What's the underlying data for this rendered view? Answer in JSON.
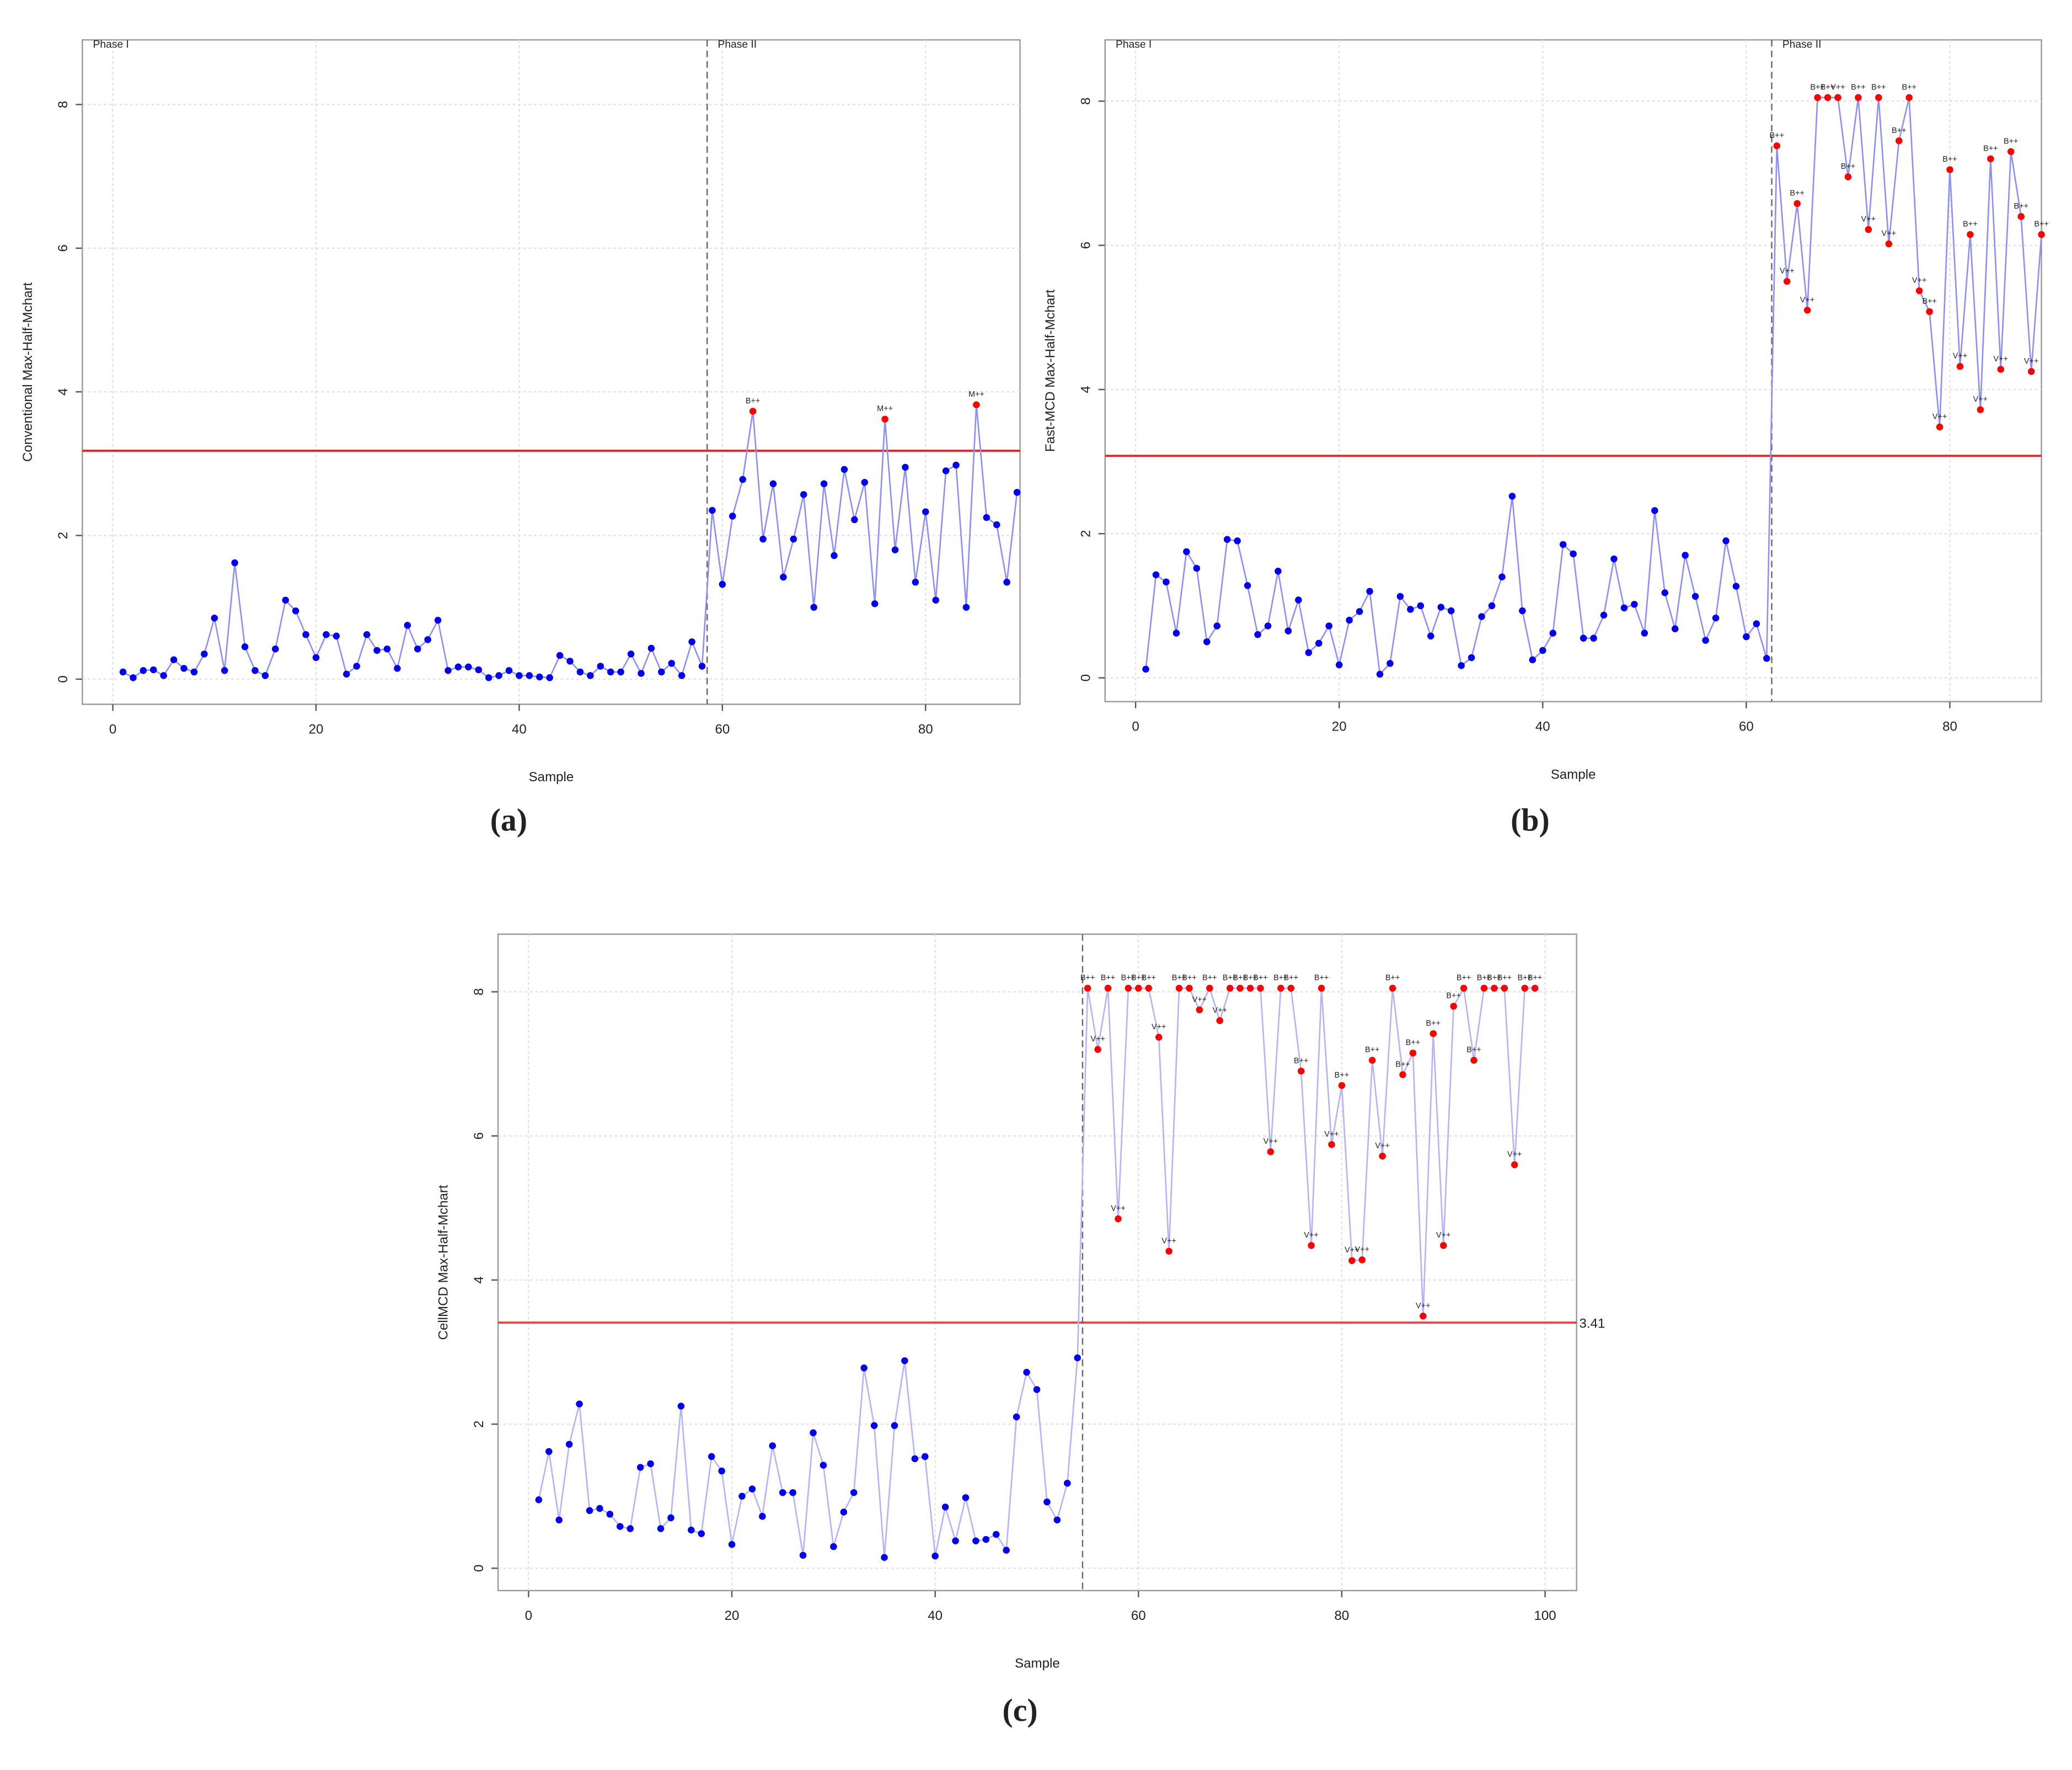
{
  "chart_data": [
    {
      "type": "line",
      "caption": "(a)",
      "ylabel": "Conventional Max-Half-Mchart",
      "xlabel": "Sample",
      "phase_labels": [
        "Phase I",
        "Phase II"
      ],
      "phase_line": 58.5,
      "ucl": 3.18,
      "xlim": [
        -3,
        89.3
      ],
      "ylim": [
        -0.35,
        8.9
      ],
      "xticks": [
        0,
        20,
        40,
        60,
        80
      ],
      "yticks": [
        0,
        2,
        4,
        6,
        8
      ],
      "grid": true,
      "line_color": "#8f8ff5",
      "color": "#0000ee",
      "signal_color": "#ff0000",
      "ucl_color": "#ee2222",
      "x": [
        1,
        2,
        3,
        4,
        5,
        6,
        7,
        8,
        9,
        10,
        11,
        12,
        13,
        14,
        15,
        16,
        17,
        18,
        19,
        20,
        21,
        22,
        23,
        24,
        25,
        26,
        27,
        28,
        29,
        30,
        31,
        32,
        33,
        34,
        35,
        36,
        37,
        38,
        39,
        40,
        41,
        42,
        43,
        44,
        45,
        46,
        47,
        48,
        49,
        50,
        51,
        52,
        53,
        54,
        55,
        56,
        57,
        58,
        59,
        60,
        61,
        62,
        63,
        64,
        65,
        66,
        67,
        68,
        69,
        70,
        71,
        72,
        73,
        74,
        75,
        76,
        77,
        78,
        79,
        80,
        81,
        82,
        83,
        84,
        85,
        86,
        87,
        88,
        89
      ],
      "series": [
        {
          "values": [
            0.1,
            0.02,
            0.12,
            0.13,
            0.05,
            0.27,
            0.15,
            0.1,
            0.35,
            0.85,
            0.12,
            1.62,
            0.45,
            0.12,
            0.05,
            0.42,
            1.1,
            0.95,
            0.62,
            0.3,
            0.62,
            0.6,
            0.07,
            0.18,
            0.62,
            0.4,
            0.42,
            0.15,
            0.75,
            0.42,
            0.55,
            0.82,
            0.12,
            0.17,
            0.17,
            0.13,
            0.02,
            0.05,
            0.12,
            0.05,
            0.05,
            0.03,
            0.02,
            0.33,
            0.25,
            0.1,
            0.05,
            0.18,
            0.1,
            0.1,
            0.35,
            0.08,
            0.43,
            0.1,
            0.22,
            0.05,
            0.52,
            0.18,
            2.35,
            1.32,
            2.27,
            2.78,
            3.73,
            1.95,
            2.72,
            1.42,
            1.95,
            2.57,
            1.0,
            2.72,
            1.72,
            2.92,
            2.22,
            2.74,
            1.05,
            3.62,
            1.8,
            2.95,
            1.35,
            2.33,
            1.1,
            2.9,
            2.98,
            1.0,
            3.82,
            2.25,
            2.15,
            1.35,
            2.6
          ]
        }
      ],
      "annotations": [
        {
          "x": 63,
          "text": "B++"
        },
        {
          "x": 76,
          "text": "M++"
        },
        {
          "x": 85,
          "text": "M++"
        }
      ]
    },
    {
      "type": "line",
      "caption": "(b)",
      "ylabel": "Fast-MCD Max-Half-Mchart",
      "xlabel": "Sample",
      "phase_labels": [
        "Phase I",
        "Phase II"
      ],
      "phase_line": 62.5,
      "ucl": 3.08,
      "xlim": [
        -3,
        89
      ],
      "ylim": [
        -0.33,
        8.85
      ],
      "xticks": [
        0,
        20,
        40,
        60,
        80
      ],
      "yticks": [
        0,
        2,
        4,
        6,
        8
      ],
      "grid": true,
      "line_color": "#8f8ff5",
      "color": "#0000ee",
      "signal_color": "#ff0000",
      "ucl_color": "#ee2222",
      "x": [
        1,
        2,
        3,
        4,
        5,
        6,
        7,
        8,
        9,
        10,
        11,
        12,
        13,
        14,
        15,
        16,
        17,
        18,
        19,
        20,
        21,
        22,
        23,
        24,
        25,
        26,
        27,
        28,
        29,
        30,
        31,
        32,
        33,
        34,
        35,
        36,
        37,
        38,
        39,
        40,
        41,
        42,
        43,
        44,
        45,
        46,
        47,
        48,
        49,
        50,
        51,
        52,
        53,
        54,
        55,
        56,
        57,
        58,
        59,
        60,
        61,
        62,
        63,
        64,
        65,
        66,
        67,
        68,
        69,
        70,
        71,
        72,
        73,
        74,
        75,
        76,
        77,
        78,
        79,
        80,
        81,
        82,
        83,
        84,
        85,
        86,
        87,
        88,
        89
      ],
      "series": [
        {
          "values": [
            0.12,
            1.43,
            1.33,
            0.62,
            1.75,
            1.52,
            0.5,
            0.72,
            1.92,
            1.9,
            1.28,
            0.6,
            0.72,
            1.48,
            0.65,
            1.08,
            0.35,
            0.48,
            0.72,
            0.18,
            0.8,
            0.92,
            1.2,
            0.05,
            0.2,
            1.13,
            0.95,
            1.0,
            0.58,
            0.98,
            0.93,
            0.17,
            0.28,
            0.85,
            1.0,
            1.4,
            2.52,
            0.93,
            0.25,
            0.38,
            0.62,
            1.85,
            1.72,
            0.55,
            0.55,
            0.87,
            1.65,
            0.97,
            1.02,
            0.62,
            2.32,
            1.18,
            0.68,
            1.7,
            1.13,
            0.52,
            0.83,
            1.9,
            1.27,
            0.57,
            0.75,
            0.27,
            7.38,
            5.5,
            6.58,
            5.1,
            8.05,
            8.05,
            8.05,
            6.95,
            8.05,
            6.22,
            8.05,
            6.02,
            7.45,
            8.05,
            5.37,
            5.08,
            3.48,
            7.05,
            4.32,
            6.15,
            3.72,
            7.2,
            4.28,
            7.3,
            6.4,
            4.25,
            6.15
          ]
        }
      ],
      "annotations": [
        {
          "x": 63,
          "text": "B++"
        },
        {
          "x": 64,
          "text": "V++"
        },
        {
          "x": 65,
          "text": "B++"
        },
        {
          "x": 66,
          "text": "V++"
        },
        {
          "x": 67,
          "text": "B++"
        },
        {
          "x": 68,
          "text": "B++"
        },
        {
          "x": 69,
          "text": "V++"
        },
        {
          "x": 70,
          "text": "B++"
        },
        {
          "x": 71,
          "text": "B++"
        },
        {
          "x": 72,
          "text": "V++"
        },
        {
          "x": 73,
          "text": "B++"
        },
        {
          "x": 74,
          "text": "V++"
        },
        {
          "x": 75,
          "text": "B++"
        },
        {
          "x": 76,
          "text": "B++"
        },
        {
          "x": 77,
          "text": "V++"
        },
        {
          "x": 78,
          "text": "B++"
        },
        {
          "x": 79,
          "text": "V++"
        },
        {
          "x": 80,
          "text": "B++"
        },
        {
          "x": 81,
          "text": "V++"
        },
        {
          "x": 82,
          "text": "B++"
        },
        {
          "x": 83,
          "text": "V++"
        },
        {
          "x": 84,
          "text": "B++"
        },
        {
          "x": 85,
          "text": "V++"
        },
        {
          "x": 86,
          "text": "B++"
        },
        {
          "x": 87,
          "text": "B++"
        },
        {
          "x": 88,
          "text": "V++"
        },
        {
          "x": 89,
          "text": "B++"
        }
      ]
    },
    {
      "type": "line",
      "caption": "(c)",
      "ylabel": "CellMCD Max-Half-Mchart",
      "xlabel": "Sample",
      "phase_line": 54.5,
      "ucl": 3.41,
      "xlim": [
        -3,
        103.1
      ],
      "ylim": [
        -0.31,
        8.8
      ],
      "xticks": [
        0,
        20,
        40,
        60,
        80,
        100
      ],
      "yticks": [
        0,
        2,
        4,
        6,
        8
      ],
      "grid": true,
      "line_color": "#b4b4f8",
      "color": "#0000ee",
      "signal_color": "#ff0000",
      "ucl_color": "#ee4444",
      "x": [
        1,
        2,
        3,
        4,
        5,
        6,
        7,
        8,
        9,
        10,
        11,
        12,
        13,
        14,
        15,
        16,
        17,
        18,
        19,
        20,
        21,
        22,
        23,
        24,
        25,
        26,
        27,
        28,
        29,
        30,
        31,
        32,
        33,
        34,
        35,
        36,
        37,
        38,
        39,
        40,
        41,
        42,
        43,
        44,
        45,
        46,
        47,
        48,
        49,
        50,
        51,
        52,
        53,
        54,
        55,
        56,
        57,
        58,
        59,
        60,
        61,
        62,
        63,
        64,
        65,
        66,
        67,
        68,
        69,
        70,
        71,
        72,
        73,
        74,
        75,
        76,
        77,
        78,
        79,
        80,
        81,
        82,
        83,
        84,
        85,
        86,
        87,
        88,
        89,
        90,
        91,
        92,
        93,
        94,
        95,
        96,
        97,
        98,
        99
      ],
      "series": [
        {
          "values": [
            0.95,
            1.62,
            0.67,
            1.72,
            2.28,
            0.8,
            0.83,
            0.75,
            0.58,
            0.55,
            1.4,
            1.45,
            0.55,
            0.7,
            2.25,
            0.53,
            0.48,
            1.55,
            1.35,
            0.33,
            1.0,
            1.1,
            0.72,
            1.7,
            1.05,
            1.05,
            0.18,
            1.88,
            1.43,
            0.3,
            0.78,
            1.05,
            2.78,
            1.98,
            0.15,
            1.98,
            2.88,
            1.52,
            1.55,
            0.17,
            0.85,
            0.38,
            0.98,
            0.38,
            0.4,
            0.47,
            0.25,
            2.1,
            2.72,
            2.48,
            0.92,
            0.67,
            1.18,
            2.92,
            8.05,
            7.2,
            8.05,
            4.85,
            8.05,
            8.05,
            8.05,
            7.37,
            4.4,
            8.05,
            8.05,
            7.75,
            8.05,
            7.6,
            8.05,
            8.05,
            8.05,
            8.05,
            5.78,
            8.05,
            8.05,
            6.9,
            4.48,
            8.05,
            5.88,
            6.7,
            4.27,
            4.28,
            7.05,
            5.72,
            8.05,
            6.85,
            7.15,
            3.5,
            7.42,
            4.48,
            7.8,
            8.05,
            7.05,
            8.05,
            8.05,
            8.05,
            5.6,
            8.05,
            8.05
          ]
        }
      ],
      "annotations": [
        {
          "x": 55,
          "text": "B++"
        },
        {
          "x": 56,
          "text": "V++"
        },
        {
          "x": 57,
          "text": "B++"
        },
        {
          "x": 58,
          "text": "V++"
        },
        {
          "x": 59,
          "text": "B++"
        },
        {
          "x": 60,
          "text": "B++"
        },
        {
          "x": 61,
          "text": "B++"
        },
        {
          "x": 62,
          "text": "V++"
        },
        {
          "x": 63,
          "text": "V++"
        },
        {
          "x": 64,
          "text": "B++"
        },
        {
          "x": 65,
          "text": "B++"
        },
        {
          "x": 66,
          "text": "V++"
        },
        {
          "x": 67,
          "text": "B++"
        },
        {
          "x": 68,
          "text": "V++"
        },
        {
          "x": 69,
          "text": "B++"
        },
        {
          "x": 70,
          "text": "B++"
        },
        {
          "x": 71,
          "text": "B++"
        },
        {
          "x": 72,
          "text": "B++"
        },
        {
          "x": 73,
          "text": "V++"
        },
        {
          "x": 74,
          "text": "B++"
        },
        {
          "x": 75,
          "text": "B++"
        },
        {
          "x": 76,
          "text": "B++"
        },
        {
          "x": 77,
          "text": "V++"
        },
        {
          "x": 78,
          "text": "B++"
        },
        {
          "x": 79,
          "text": "V++"
        },
        {
          "x": 80,
          "text": "B++"
        },
        {
          "x": 81,
          "text": "V++"
        },
        {
          "x": 82,
          "text": "V++"
        },
        {
          "x": 83,
          "text": "B++"
        },
        {
          "x": 84,
          "text": "V++"
        },
        {
          "x": 85,
          "text": "B++"
        },
        {
          "x": 86,
          "text": "B++"
        },
        {
          "x": 87,
          "text": "B++"
        },
        {
          "x": 88,
          "text": "V++"
        },
        {
          "x": 89,
          "text": "B++"
        },
        {
          "x": 90,
          "text": "V++"
        },
        {
          "x": 91,
          "text": "B++"
        },
        {
          "x": 92,
          "text": "B++"
        },
        {
          "x": 93,
          "text": "B++"
        },
        {
          "x": 94,
          "text": "B++"
        },
        {
          "x": 95,
          "text": "B++"
        },
        {
          "x": 96,
          "text": "B++"
        },
        {
          "x": 97,
          "text": "V++"
        },
        {
          "x": 98,
          "text": "B++"
        },
        {
          "x": 99,
          "text": "B++"
        }
      ]
    }
  ]
}
